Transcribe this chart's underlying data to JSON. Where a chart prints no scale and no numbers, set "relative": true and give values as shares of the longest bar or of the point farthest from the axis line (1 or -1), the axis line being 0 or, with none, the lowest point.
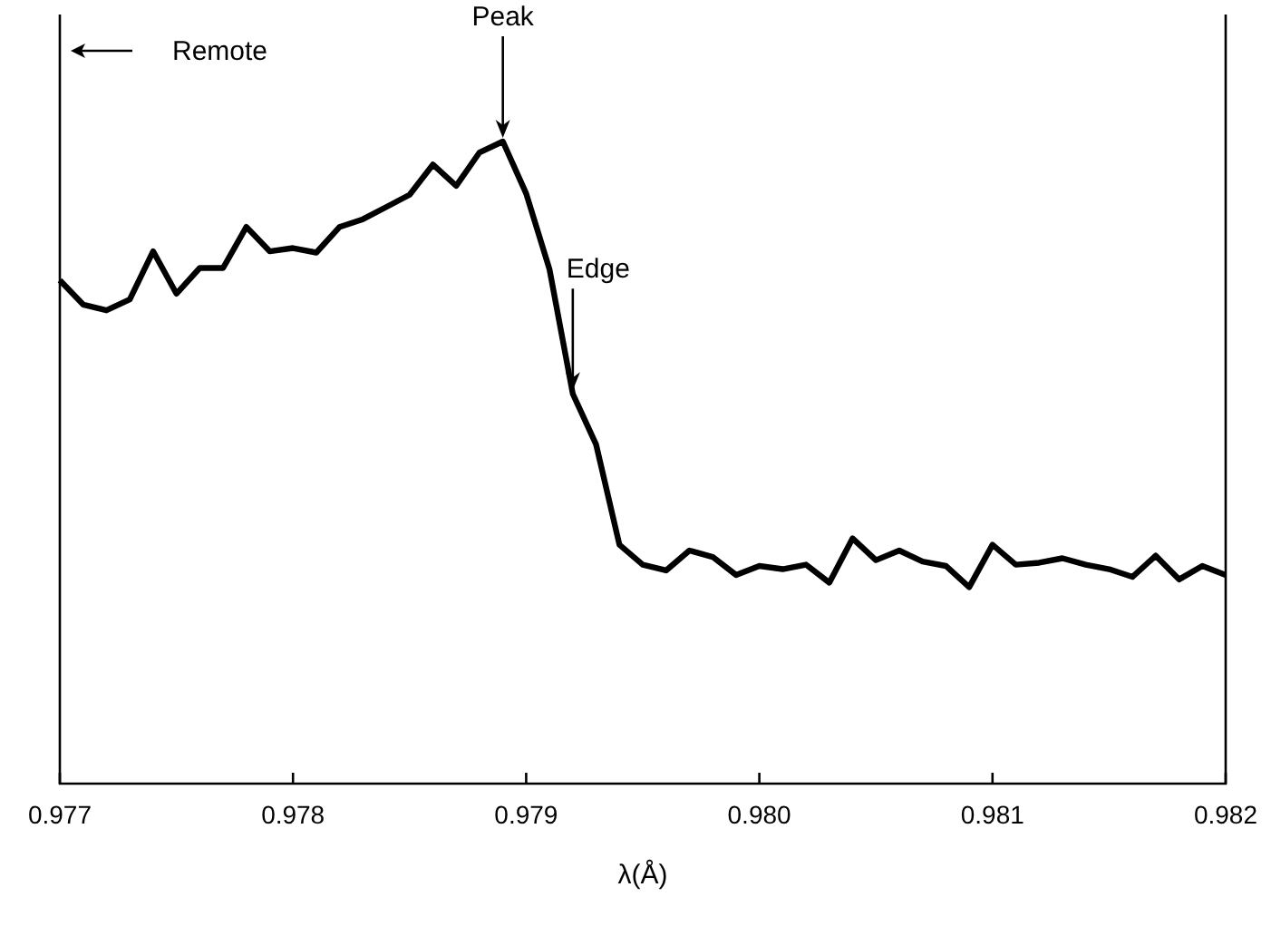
{
  "chart_data": {
    "type": "line",
    "xlabel": "λ(Å)",
    "relative": true,
    "x": [
      0.977,
      0.9771,
      0.9772,
      0.9773,
      0.9774,
      0.9775,
      0.9776,
      0.9777,
      0.9778,
      0.9779,
      0.978,
      0.9781,
      0.9782,
      0.9783,
      0.9784,
      0.9785,
      0.9786,
      0.9787,
      0.9788,
      0.9789,
      0.979,
      0.9791,
      0.9792,
      0.9793,
      0.9794,
      0.9795,
      0.9796,
      0.9797,
      0.9798,
      0.9799,
      0.98,
      0.9801,
      0.9802,
      0.9803,
      0.9804,
      0.9805,
      0.9806,
      0.9807,
      0.9808,
      0.9809,
      0.981,
      0.9811,
      0.9812,
      0.9813,
      0.9814,
      0.9815,
      0.9816,
      0.9817,
      0.9818,
      0.9819,
      0.982
    ],
    "series": [
      {
        "color": "#000000",
        "values": [
          0.784,
          0.746,
          0.737,
          0.754,
          0.829,
          0.763,
          0.803,
          0.803,
          0.867,
          0.829,
          0.834,
          0.827,
          0.867,
          0.879,
          0.898,
          0.917,
          0.964,
          0.931,
          0.983,
          1,
          0.919,
          0.801,
          0.607,
          0.528,
          0.372,
          0.341,
          0.332,
          0.363,
          0.353,
          0.325,
          0.339,
          0.334,
          0.341,
          0.313,
          0.382,
          0.348,
          0.363,
          0.346,
          0.339,
          0.306,
          0.372,
          0.341,
          0.344,
          0.351,
          0.341,
          0.334,
          0.322,
          0.355,
          0.318,
          0.339,
          0.325
        ]
      }
    ],
    "xlim": [
      0.977,
      0.982
    ],
    "xticks": [
      {
        "value": 0.977,
        "label": "0.977"
      },
      {
        "value": 0.978,
        "label": "0.978"
      },
      {
        "value": 0.979,
        "label": "0.979"
      },
      {
        "value": 0.98,
        "label": "0.980"
      },
      {
        "value": 0.981,
        "label": "0.981"
      },
      {
        "value": 0.982,
        "label": "0.982"
      }
    ],
    "annotations": [
      "Remote",
      {
        "text": "Peak",
        "x": 0.9789,
        "y": 1
      },
      {
        "text": "Edge",
        "x": 0.9792,
        "y": 0.607
      }
    ],
    "grid": false,
    "marker": "none",
    "line_style": "solid"
  }
}
